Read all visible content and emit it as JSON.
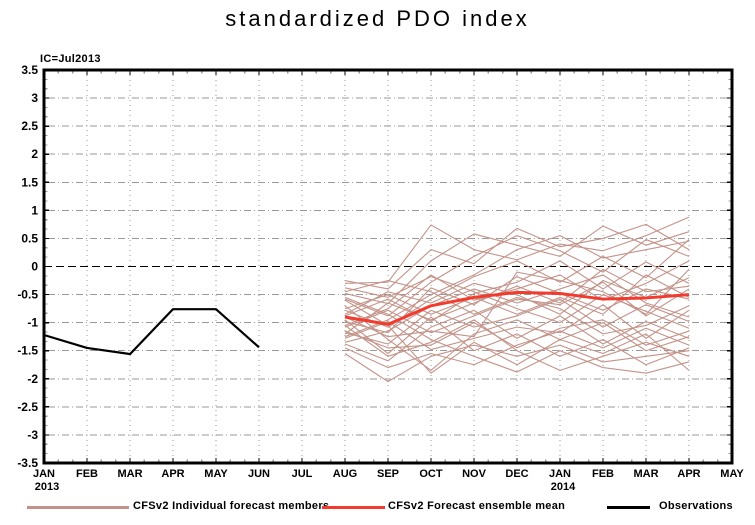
{
  "title": "standardized PDO index",
  "ic_label": "IC=Jul2013",
  "legend": {
    "members": "CFSv2 Individual forecast members",
    "mean": "CFSv2 Forecast ensemble mean",
    "observations": "Observations"
  },
  "colors": {
    "members": "#c39389",
    "mean": "#f23b2e",
    "observations": "#000000",
    "grid": "#9a9a9a",
    "frame": "#000000"
  },
  "chart_data": {
    "type": "line",
    "title": "standardized PDO index",
    "initial_condition": "IC=Jul2013",
    "x_tick_labels": [
      "JAN",
      "FEB",
      "MAR",
      "APR",
      "MAY",
      "JUN",
      "JUL",
      "AUG",
      "SEP",
      "OCT",
      "NOV",
      "DEC",
      "JAN",
      "FEB",
      "MAR",
      "APR",
      "MAY"
    ],
    "year_labels": [
      {
        "index": 0,
        "text": "2013"
      },
      {
        "index": 12,
        "text": "2014"
      }
    ],
    "y_tick_labels": [
      "3.5",
      "3",
      "2.5",
      "2",
      "1.5",
      "1",
      "0.5",
      "0",
      "-0.5",
      "-1",
      "-1.5",
      "-2",
      "-2.5",
      "-3",
      "-3.5"
    ],
    "ylim": [
      -3.5,
      3.5
    ],
    "y_step": 0.5,
    "grid": true,
    "legend_position": "bottom",
    "observations": {
      "name": "Observations",
      "start_index": 0,
      "values": [
        -1.22,
        -1.45,
        -1.56,
        -0.76,
        -0.76,
        -1.44
      ]
    },
    "ensemble_mean": {
      "name": "CFSv2 Forecast ensemble mean",
      "start_index": 7,
      "values": [
        -0.9,
        -1.03,
        -0.7,
        -0.55,
        -0.46,
        -0.48,
        -0.58,
        -0.56,
        -0.5
      ]
    },
    "members": {
      "name": "CFSv2 Individual forecast members",
      "start_index": 7,
      "series": [
        [
          -0.3,
          -0.28,
          0.74,
          0.3,
          0.12,
          0.4,
          0.28,
          0.55,
          0.88
        ],
        [
          -0.48,
          -0.66,
          0.1,
          0.58,
          0.38,
          0.18,
          0.72,
          0.38,
          0.62
        ],
        [
          -0.58,
          -0.88,
          -0.28,
          0.18,
          0.55,
          0.28,
          -0.1,
          0.48,
          0.18
        ],
        [
          -0.78,
          -1.08,
          -0.58,
          -0.18,
          0.1,
          -0.28,
          0.18,
          -0.2,
          0.48
        ],
        [
          -0.88,
          -0.58,
          -0.98,
          -0.48,
          -0.28,
          0.1,
          -0.4,
          0.08,
          -0.3
        ],
        [
          -0.98,
          -1.18,
          -0.38,
          -0.68,
          -0.18,
          -0.48,
          -0.78,
          -0.4,
          -0.58
        ],
        [
          -1.08,
          -0.78,
          -1.18,
          -0.88,
          -0.58,
          -0.68,
          -0.28,
          -0.88,
          -0.4
        ],
        [
          -1.18,
          -1.38,
          -0.78,
          -1.08,
          -0.88,
          -0.58,
          -1.08,
          -0.68,
          -0.98
        ],
        [
          -1.28,
          -0.98,
          -1.48,
          -1.28,
          -1.08,
          -1.18,
          -0.68,
          -1.28,
          -0.78
        ],
        [
          -1.38,
          -1.68,
          -1.08,
          -0.78,
          -1.28,
          -0.88,
          -1.38,
          -0.98,
          -1.28
        ],
        [
          -1.55,
          -2.05,
          -1.6,
          -1.4,
          -1.6,
          -1.4,
          -1.7,
          -1.6,
          -1.5
        ],
        [
          -0.38,
          -0.55,
          -0.18,
          -0.45,
          -0.75,
          -1.0,
          -0.5,
          -0.8,
          -1.1
        ],
        [
          -0.55,
          -0.85,
          -1.3,
          -1.6,
          -1.88,
          -1.5,
          -1.8,
          -1.9,
          -1.7
        ],
        [
          -0.7,
          -1.3,
          -1.85,
          -1.2,
          -0.95,
          -1.3,
          -1.55,
          -1.2,
          -1.85
        ],
        [
          -0.85,
          -0.45,
          -0.65,
          -0.3,
          -0.5,
          -0.85,
          -0.25,
          -0.55,
          -0.2
        ],
        [
          -0.95,
          -1.55,
          -0.9,
          -1.5,
          -1.2,
          -1.6,
          -1.3,
          -1.75,
          -1.45
        ],
        [
          -1.05,
          -0.75,
          -0.15,
          -0.6,
          -0.4,
          -0.15,
          -0.6,
          -0.3,
          0.1
        ],
        [
          -1.15,
          -1.45,
          -1.4,
          -1.0,
          -1.45,
          -1.1,
          -0.95,
          -1.4,
          -1.15
        ],
        [
          -1.25,
          -0.95,
          -0.5,
          -0.15,
          0.3,
          0.55,
          0.15,
          0.3,
          0.45
        ],
        [
          -1.35,
          -1.15,
          -0.7,
          -0.4,
          -0.65,
          -0.4,
          -0.15,
          -0.65,
          -0.9
        ],
        [
          -0.45,
          -0.25,
          -0.45,
          -0.85,
          -0.55,
          -0.75,
          -1.2,
          -1.05,
          -0.7
        ],
        [
          -0.6,
          -1.05,
          -1.9,
          -1.35,
          -1.75,
          -1.3,
          -1.0,
          -1.5,
          -1.25
        ],
        [
          -0.75,
          -0.5,
          -0.85,
          -0.55,
          -0.85,
          -0.55,
          -0.85,
          -0.15,
          -0.55
        ],
        [
          -0.9,
          -1.25,
          -1.15,
          -1.25,
          -0.1,
          -0.25,
          -0.45,
          -0.85,
          -0.05
        ],
        [
          -1.05,
          -1.6,
          -1.35,
          -0.95,
          -1.5,
          -1.85,
          -1.6,
          -1.35,
          -1.6
        ],
        [
          -1.2,
          -0.65,
          -0.95,
          -0.65,
          -0.35,
          -0.65,
          -0.05,
          -0.45,
          -0.35
        ],
        [
          -1.45,
          -1.8,
          -1.55,
          -1.75,
          -1.4,
          -1.15,
          -1.45,
          -1.1,
          -1.4
        ],
        [
          -0.25,
          -0.4,
          0.3,
          0.05,
          0.68,
          0.35,
          0.5,
          0.75,
          0.3
        ]
      ]
    }
  }
}
